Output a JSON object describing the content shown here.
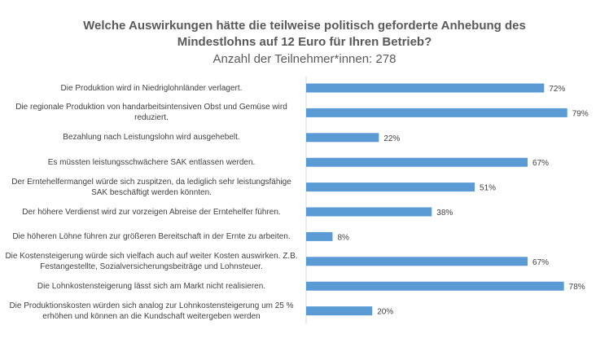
{
  "chart_data": {
    "type": "bar",
    "orientation": "horizontal",
    "title": "Welche Auswirkungen hätte die teilweise politisch geforderte Anhebung des Mindestlohns auf 12 Euro für Ihren Betrieb?",
    "title_line1": "Welche Auswirkungen hätte die teilweise politisch geforderte Anhebung des",
    "title_line2": "Mindestlohns auf 12 Euro für Ihren Betrieb?",
    "subtitle": "Anzahl der Teilnehmer*innen: 278",
    "categories": [
      "Die Produktion wird in Niedriglohnländer verlagert.",
      "Die regionale Produktion von handarbeitsintensiven Obst und Gemüse wird reduziert.",
      "Bezahlung nach Leistungslohn wird ausgehebelt.",
      "Es müssten leistungsschwächere SAK entlassen werden.",
      "Der Erntehelfermangel würde sich zuspitzen, da lediglich sehr leistungsfähige SAK beschäftigt werden könnten.",
      "Der höhere Verdienst wird zur vorzeigen Abreise der Erntehelfer führen.",
      "Die höheren Löhne führen zur größeren Bereitschaft in der Ernte zu arbeiten.",
      "Die Kostensteigerung würde sich vielfach auch auf weiter Kosten auswirken. Z.B. Festangestellte, Sozialversicherungsbeiträge und Lohnsteuer.",
      "Die Lohnkostensteigerung lässt sich am Markt nicht realisieren.",
      "Die Produktionskosten würden sich analog zur Lohnkostensteigerung um 25 % erhöhen und können an die Kundschaft weitergeben werden"
    ],
    "values": [
      72,
      79,
      22,
      67,
      51,
      38,
      8,
      67,
      78,
      20
    ],
    "data_labels": [
      "72%",
      "79%",
      "22%",
      "67%",
      "51%",
      "38%",
      "8%",
      "67%",
      "78%",
      "20%"
    ],
    "unit": "%",
    "xlim": [
      0,
      80
    ],
    "grid": false,
    "legend": "none",
    "bar_color": "#5B9BD5"
  }
}
